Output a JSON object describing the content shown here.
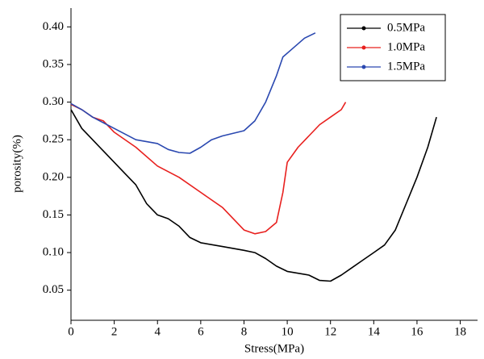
{
  "chart_data": {
    "type": "line",
    "xlabel": "Stress(MPa)",
    "ylabel": "porosity(%)",
    "xlim": [
      0,
      18.8
    ],
    "ylim": [
      0.01,
      0.425
    ],
    "xticks": [
      0,
      2,
      4,
      6,
      8,
      10,
      12,
      14,
      16,
      18
    ],
    "yticks": [
      {
        "value": 0.05,
        "label": "0.05"
      },
      {
        "value": 0.1,
        "label": "0.10"
      },
      {
        "value": 0.15,
        "label": "0.15"
      },
      {
        "value": 0.2,
        "label": "0.20"
      },
      {
        "value": 0.25,
        "label": "0.25"
      },
      {
        "value": 0.3,
        "label": "0.30"
      },
      {
        "value": 0.35,
        "label": "0.35"
      },
      {
        "value": 0.4,
        "label": "0.40"
      }
    ],
    "legend": "upper right",
    "series": [
      {
        "name": "0.5MPa",
        "color": "#000000",
        "x": [
          0,
          0.5,
          1,
          1.5,
          2,
          2.5,
          3,
          3.5,
          4,
          4.5,
          5,
          5.5,
          6,
          7,
          8,
          8.5,
          9,
          9.5,
          10,
          11,
          11.5,
          12,
          12.5,
          13,
          13.5,
          14,
          14.5,
          15,
          15.5,
          16,
          16.5,
          16.9
        ],
        "values": [
          0.29,
          0.265,
          0.25,
          0.235,
          0.22,
          0.205,
          0.19,
          0.165,
          0.15,
          0.145,
          0.135,
          0.12,
          0.113,
          0.108,
          0.103,
          0.1,
          0.092,
          0.082,
          0.075,
          0.07,
          0.063,
          0.062,
          0.07,
          0.08,
          0.09,
          0.1,
          0.11,
          0.13,
          0.165,
          0.2,
          0.24,
          0.28
        ]
      },
      {
        "name": "1.0MPa",
        "color": "#e8201e",
        "x": [
          0,
          0.5,
          1,
          1.5,
          2,
          3,
          4,
          5,
          6,
          7,
          7.5,
          8,
          8.5,
          9,
          9.5,
          9.8,
          10,
          10.5,
          11,
          11.5,
          12,
          12.5,
          12.7
        ],
        "values": [
          0.297,
          0.29,
          0.28,
          0.275,
          0.26,
          0.24,
          0.215,
          0.2,
          0.18,
          0.16,
          0.145,
          0.13,
          0.125,
          0.128,
          0.14,
          0.18,
          0.22,
          0.24,
          0.255,
          0.27,
          0.28,
          0.29,
          0.3
        ]
      },
      {
        "name": "1.5MPa",
        "color": "#2a48b0",
        "x": [
          0,
          0.5,
          1,
          2,
          3,
          4,
          4.5,
          5,
          5.5,
          6,
          6.5,
          7,
          8,
          8.5,
          9,
          9.5,
          9.8,
          10.2,
          10.8,
          11.3
        ],
        "values": [
          0.298,
          0.29,
          0.28,
          0.265,
          0.25,
          0.245,
          0.237,
          0.233,
          0.232,
          0.24,
          0.25,
          0.255,
          0.262,
          0.275,
          0.3,
          0.335,
          0.36,
          0.37,
          0.385,
          0.392
        ]
      }
    ]
  }
}
